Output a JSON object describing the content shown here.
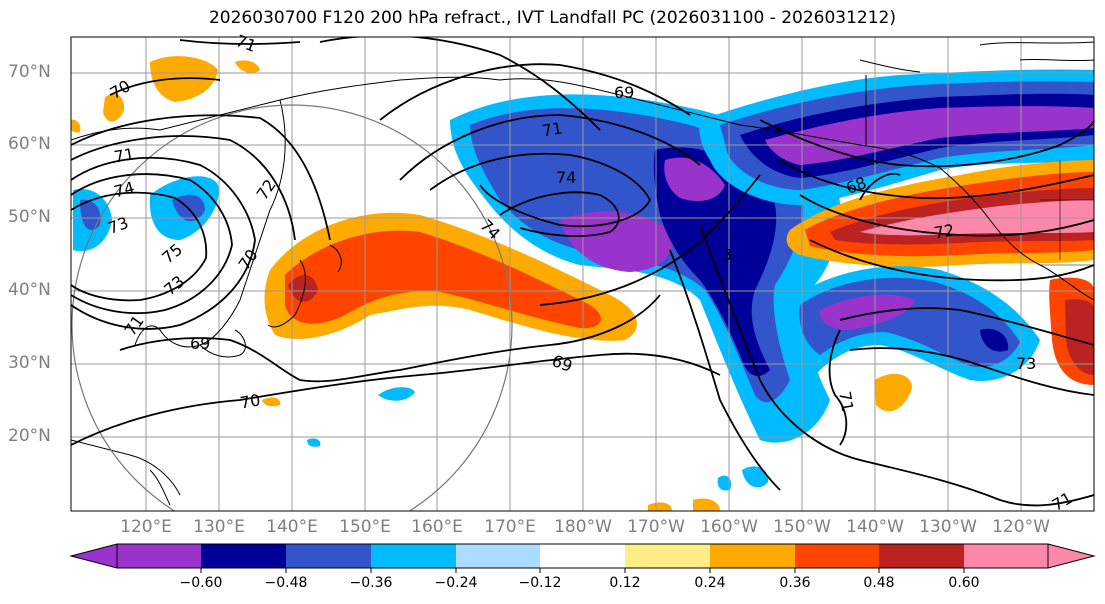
{
  "title": "2026030700 F120 200 hPa refract., IVT Landfall PC (2026031100 - 2026031212)",
  "lat_labels": [
    "70°N",
    "60°N",
    "50°N",
    "40°N",
    "30°N",
    "20°N"
  ],
  "lon_labels": [
    "120°E",
    "130°E",
    "140°E",
    "150°E",
    "160°E",
    "170°E",
    "180°W",
    "170°W",
    "160°W",
    "150°W",
    "140°W",
    "130°W",
    "120°W"
  ],
  "contour_labels": [
    "71",
    "70",
    "69",
    "71",
    "74",
    "71",
    "74",
    "73",
    "75",
    "73",
    "70",
    "72",
    "71",
    "69",
    "74",
    "3",
    "69",
    "70",
    "68",
    "72",
    "71",
    "73",
    "71"
  ],
  "colorbar": {
    "ticks": [
      "−0.60",
      "−0.48",
      "−0.36",
      "−0.24",
      "−0.12",
      "0.12",
      "0.24",
      "0.36",
      "0.48",
      "0.60"
    ],
    "colors": [
      "#9933cc",
      "#000099",
      "#3355cc",
      "#00bbff",
      "#aaddff",
      "#ffffff",
      "#ffee88",
      "#ffaa00",
      "#ff4400",
      "#bb2222",
      "#ff88aa"
    ]
  },
  "colors": {
    "purple": "#9933cc",
    "navy": "#000099",
    "blue": "#3355cc",
    "cyan": "#00bbff",
    "light_blue": "#aaddff",
    "light_yellow": "#ffee88",
    "orange": "#ffaa00",
    "red_orange": "#ff4400",
    "dark_red": "#bb2222",
    "pink": "#ff88aa"
  }
}
